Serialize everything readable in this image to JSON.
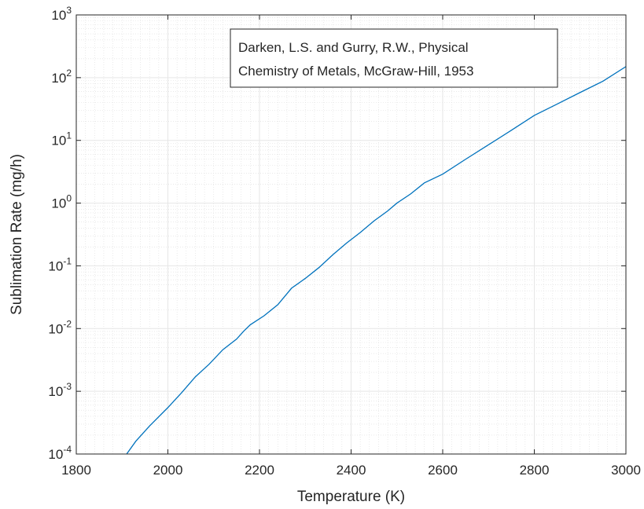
{
  "chart_data": {
    "type": "line",
    "title": "",
    "xlabel": "Temperature (K)",
    "ylabel": "Sublimation Rate (mg/h)",
    "xlim": [
      1800,
      3000
    ],
    "ylim": [
      0.0001,
      1000
    ],
    "y_scale": "log",
    "grid": true,
    "minor_grid": true,
    "x_ticks": [
      {
        "value": 1800,
        "label": "1800"
      },
      {
        "value": 2000,
        "label": "2000"
      },
      {
        "value": 2200,
        "label": "2200"
      },
      {
        "value": 2400,
        "label": "2400"
      },
      {
        "value": 2600,
        "label": "2600"
      },
      {
        "value": 2800,
        "label": "2800"
      },
      {
        "value": 3000,
        "label": "3000"
      }
    ],
    "y_ticks": [
      {
        "value": 0.0001,
        "base": "10",
        "exp": "-4"
      },
      {
        "value": 0.001,
        "base": "10",
        "exp": "-3"
      },
      {
        "value": 0.01,
        "base": "10",
        "exp": "-2"
      },
      {
        "value": 0.1,
        "base": "10",
        "exp": "-1"
      },
      {
        "value": 1,
        "base": "10",
        "exp": "0"
      },
      {
        "value": 10,
        "base": "10",
        "exp": "1"
      },
      {
        "value": 100,
        "base": "10",
        "exp": "2"
      },
      {
        "value": 1000,
        "base": "10",
        "exp": "3"
      }
    ],
    "annotation": {
      "lines": [
        "Darken, L.S. and Gurry, R.W., Physical",
        "Chemistry of Metals, McGraw-Hill, 1953"
      ]
    },
    "colors": {
      "line": "#0072BD",
      "grid": "#e6e6e6",
      "axis": "#262626"
    },
    "series": [
      {
        "x": [
          1910,
          1930,
          1960,
          2000,
          2030,
          2060,
          2090,
          2120,
          2150,
          2165,
          2180,
          2210,
          2240,
          2270,
          2300,
          2330,
          2360,
          2390,
          2420,
          2450,
          2480,
          2500,
          2530,
          2560,
          2600,
          2650,
          2700,
          2750,
          2800,
          2850,
          2900,
          2950,
          3000
        ],
        "y": [
          0.0001,
          0.00016,
          0.00028,
          0.00055,
          0.00095,
          0.0017,
          0.0027,
          0.0046,
          0.0068,
          0.009,
          0.0115,
          0.016,
          0.024,
          0.044,
          0.063,
          0.094,
          0.15,
          0.23,
          0.34,
          0.52,
          0.75,
          1.0,
          1.4,
          2.1,
          2.9,
          5.0,
          8.5,
          14.5,
          25,
          38,
          58,
          88,
          150
        ]
      }
    ]
  }
}
